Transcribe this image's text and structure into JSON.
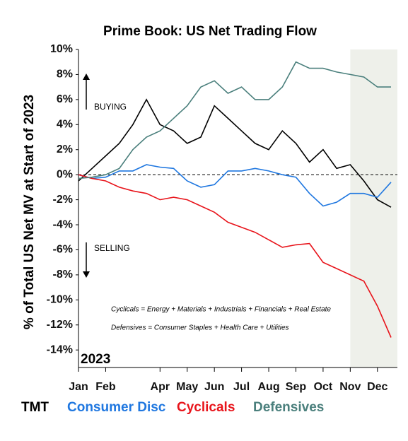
{
  "chart_data": {
    "type": "line",
    "title": "Prime Book: US Net Trading Flow",
    "y_label": "% of Total US Net MV at Start of 2023",
    "categories": [
      "Jan",
      null,
      "Feb",
      null,
      null,
      null,
      "Apr",
      null,
      "May",
      null,
      "Jun",
      null,
      "Jul",
      null,
      "Aug",
      null,
      "Sep",
      null,
      "Oct",
      null,
      "Nov",
      null,
      "Dec",
      null
    ],
    "series": [
      {
        "name": "TMT",
        "color": "#000000",
        "values": [
          -0.5,
          0.5,
          1.5,
          2.5,
          4,
          6,
          4,
          3.5,
          2.5,
          3,
          5.5,
          4.5,
          3.5,
          2.5,
          2,
          3.5,
          2.5,
          1,
          2,
          0.5,
          0.8,
          -0.5,
          -2,
          -2.6
        ]
      },
      {
        "name": "Consumer Disc",
        "color": "#1f77e0",
        "values": [
          0,
          -0.3,
          -0.2,
          0.3,
          0.3,
          0.8,
          0.6,
          0.5,
          -0.5,
          -1,
          -0.8,
          0.3,
          0.3,
          0.5,
          0.3,
          0,
          -0.2,
          -1.5,
          -2.5,
          -2.2,
          -1.5,
          -1.5,
          -1.8,
          -0.6
        ]
      },
      {
        "name": "Cyclicals",
        "color": "#e8141b",
        "values": [
          0,
          -0.3,
          -0.5,
          -1,
          -1.3,
          -1.5,
          -2,
          -1.8,
          -2,
          -2.5,
          -3,
          -3.8,
          -4.2,
          -4.6,
          -5.2,
          -5.8,
          -5.6,
          -5.5,
          -7,
          -7.5,
          -8,
          -8.5,
          -10.5,
          -13
        ]
      },
      {
        "name": "Defensives",
        "color": "#4a7f7c",
        "values": [
          -0.3,
          -0.2,
          0,
          0.5,
          2,
          3,
          3.5,
          4.5,
          5.5,
          7,
          7.5,
          6.5,
          7,
          6,
          6,
          7,
          9,
          8.5,
          8.5,
          8.2,
          8,
          7.8,
          7,
          7
        ]
      }
    ],
    "ylim": [
      -15.4,
      10
    ],
    "yticks": [
      {
        "value": 10,
        "label": "10%"
      },
      {
        "value": 8,
        "label": "8%"
      },
      {
        "value": 6,
        "label": "6%"
      },
      {
        "value": 4,
        "label": "4%"
      },
      {
        "value": 2,
        "label": "2%"
      },
      {
        "value": 0,
        "label": "0%"
      },
      {
        "value": -2,
        "label": "-2%"
      },
      {
        "value": -4,
        "label": "-4%"
      },
      {
        "value": -6,
        "label": "-6%"
      },
      {
        "value": -8,
        "label": "-8%"
      },
      {
        "value": -10,
        "label": "-10%"
      },
      {
        "value": -12,
        "label": "-12%"
      },
      {
        "value": -14,
        "label": "-14%"
      }
    ],
    "annotations": [
      "BUYING",
      "SELLING",
      "2023",
      "Cyclicals = Energy + Materials + Industrials + Financials + Real Estate",
      "Defensives = Consumer Staples + Health Care + Utilities"
    ]
  }
}
